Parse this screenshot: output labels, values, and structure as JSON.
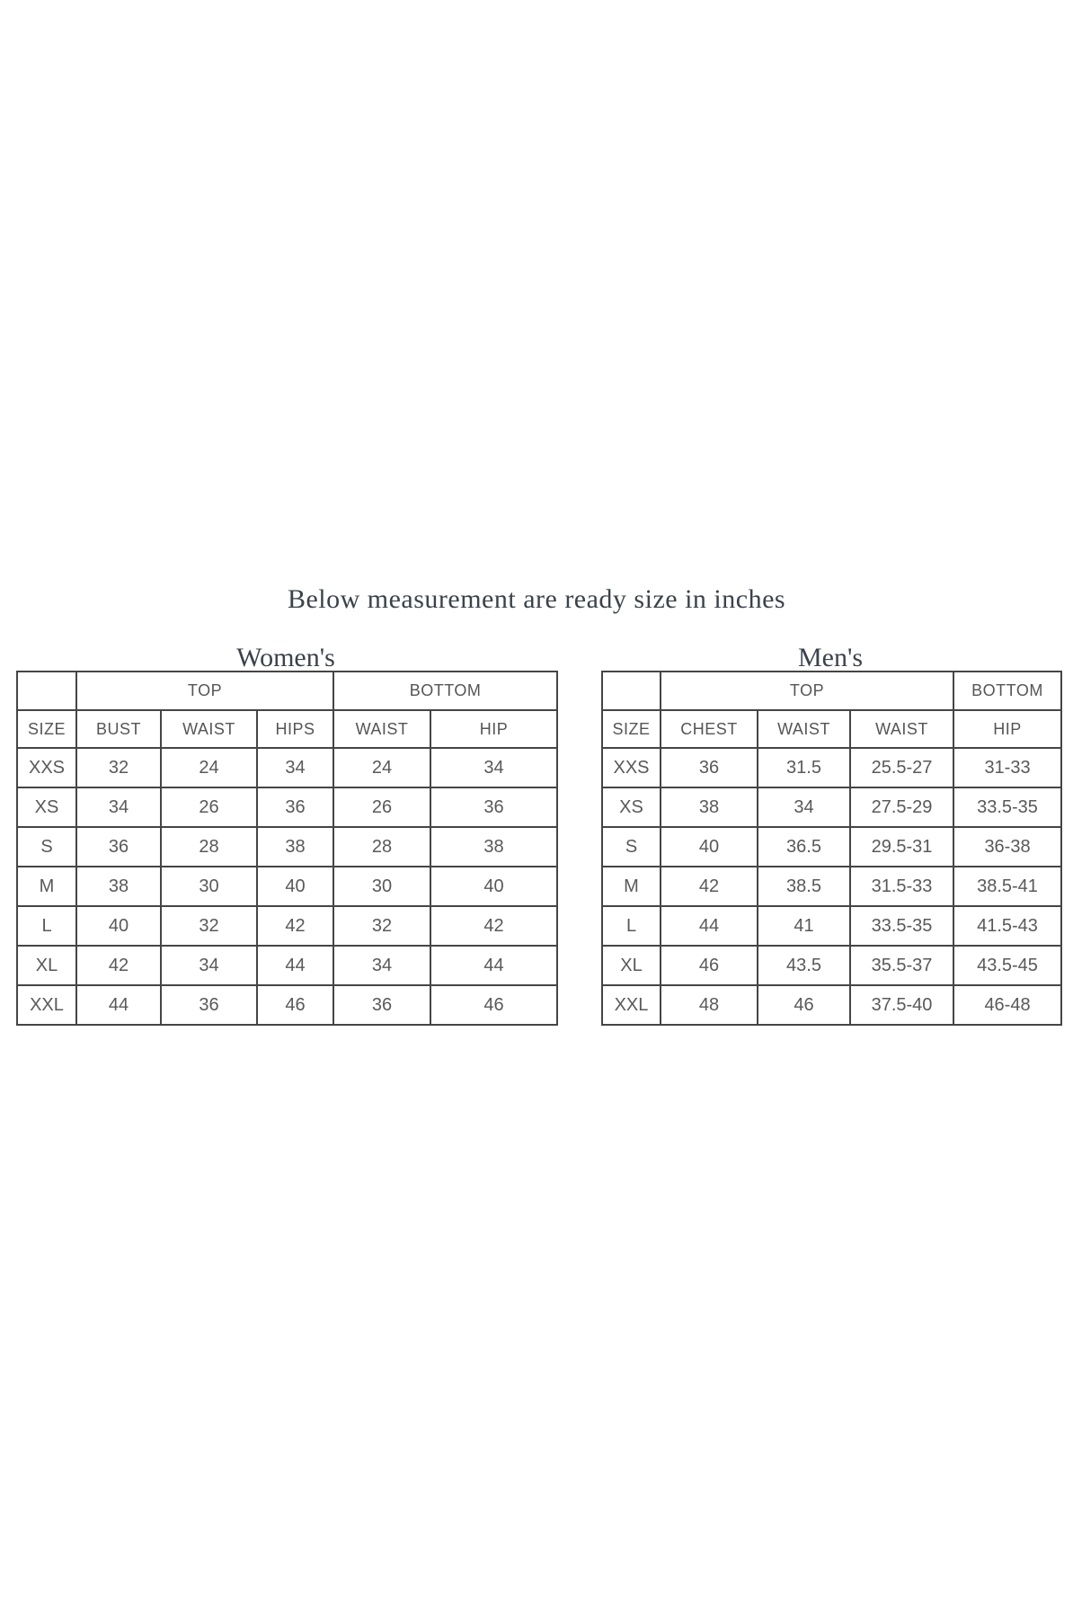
{
  "title": "Below measurement are ready size in inches",
  "colors": {
    "background": "#ffffff",
    "heading_text": "#3b424a",
    "table_text": "#595959",
    "border": "#454545"
  },
  "women": {
    "heading": "Women's",
    "group_top_label": "TOP",
    "group_bottom_label": "BOTTOM",
    "columns": [
      "SIZE",
      "BUST",
      "WAIST",
      "HIPS",
      "WAIST",
      "HIP"
    ],
    "rows": [
      [
        "XXS",
        "32",
        "24",
        "34",
        "24",
        "34"
      ],
      [
        "XS",
        "34",
        "26",
        "36",
        "26",
        "36"
      ],
      [
        "S",
        "36",
        "28",
        "38",
        "28",
        "38"
      ],
      [
        "M",
        "38",
        "30",
        "40",
        "30",
        "40"
      ],
      [
        "L",
        "40",
        "32",
        "42",
        "32",
        "42"
      ],
      [
        "XL",
        "42",
        "34",
        "44",
        "34",
        "44"
      ],
      [
        "XXL",
        "44",
        "36",
        "46",
        "36",
        "46"
      ]
    ]
  },
  "men": {
    "heading": "Men's",
    "group_top_label": "TOP",
    "group_bottom_label": "BOTTOM",
    "columns": [
      "SIZE",
      "CHEST",
      "WAIST",
      "WAIST",
      "HIP"
    ],
    "rows": [
      [
        "XXS",
        "36",
        "31.5",
        "25.5-27",
        "31-33"
      ],
      [
        "XS",
        "38",
        "34",
        "27.5-29",
        "33.5-35"
      ],
      [
        "S",
        "40",
        "36.5",
        "29.5-31",
        "36-38"
      ],
      [
        "M",
        "42",
        "38.5",
        "31.5-33",
        "38.5-41"
      ],
      [
        "L",
        "44",
        "41",
        "33.5-35",
        "41.5-43"
      ],
      [
        "XL",
        "46",
        "43.5",
        "35.5-37",
        "43.5-45"
      ],
      [
        "XXL",
        "48",
        "46",
        "37.5-40",
        "46-48"
      ]
    ]
  }
}
